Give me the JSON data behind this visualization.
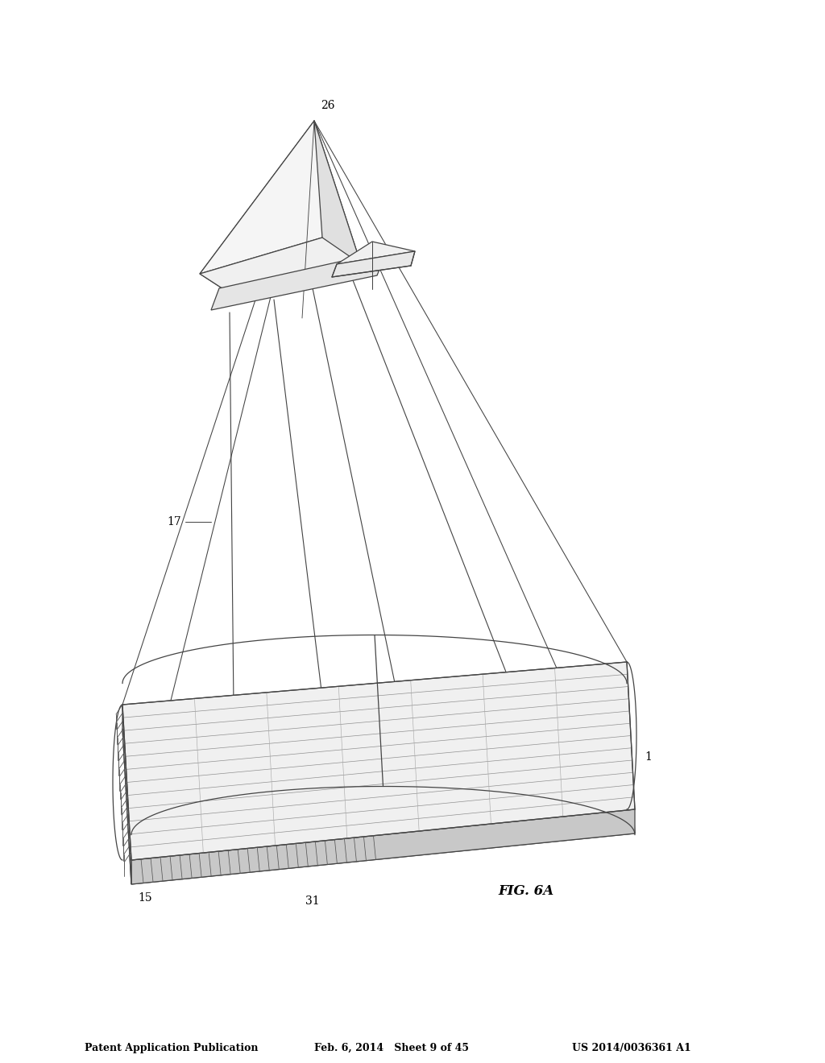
{
  "header_left": "Patent Application Publication",
  "header_mid": "Feb. 6, 2014   Sheet 9 of 45",
  "header_right": "US 2014/0036361 A1",
  "fig_label": "FIG. 6A",
  "label_26": "26",
  "label_17": "17",
  "label_1": "1",
  "label_15": "15",
  "label_31": "31",
  "bg_color": "#ffffff",
  "line_color": "#444444",
  "line_width": 0.9,
  "fig_width": 10.24,
  "fig_height": 13.2
}
